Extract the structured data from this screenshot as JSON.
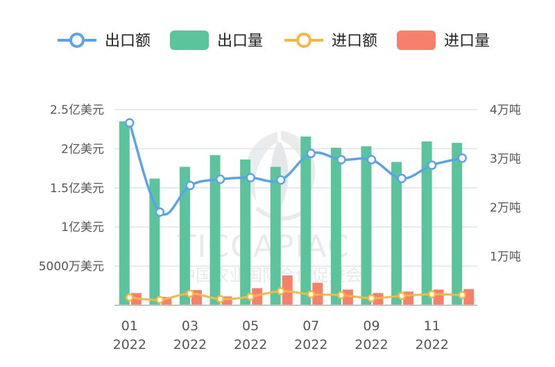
{
  "chart_data": {
    "type": "bar",
    "categories": [
      "01",
      "02",
      "03",
      "04",
      "05",
      "06",
      "07",
      "08",
      "09",
      "10",
      "11",
      "12"
    ],
    "x_tick_labels": [
      {
        "month": "01",
        "year": "2022"
      },
      {
        "month": "03",
        "year": "2022"
      },
      {
        "month": "05",
        "year": "2022"
      },
      {
        "month": "07",
        "year": "2022"
      },
      {
        "month": "09",
        "year": "2022"
      },
      {
        "month": "11",
        "year": "2022"
      }
    ],
    "left_axis": {
      "range": [
        0,
        2.5
      ],
      "tick_values": [
        0.5,
        1,
        1.5,
        2,
        2.5
      ],
      "tick_labels": [
        "5000万美元",
        "1亿美元",
        "1.5亿美元",
        "2亿美元",
        "2.5亿美元"
      ]
    },
    "right_axis": {
      "range": [
        0,
        4
      ],
      "tick_values": [
        1,
        2,
        3,
        4
      ],
      "tick_labels": [
        "1万吨",
        "2万吨",
        "3万吨",
        "4万吨"
      ]
    },
    "grid": true,
    "legend_placement": "top",
    "series": [
      {
        "name": "出口额",
        "kind": "line",
        "axis": "left",
        "color": "#5aa3e8",
        "values": [
          2.33,
          1.19,
          1.53,
          1.61,
          1.63,
          1.6,
          1.94,
          1.86,
          1.86,
          1.62,
          1.79,
          1.88
        ]
      },
      {
        "name": "出口量",
        "kind": "bar",
        "axis": "right",
        "color": "#5cc49c",
        "values": [
          3.76,
          2.59,
          2.83,
          3.07,
          2.98,
          2.83,
          3.45,
          3.22,
          3.25,
          2.93,
          3.35,
          3.32
        ]
      },
      {
        "name": "进口额",
        "kind": "line",
        "axis": "left",
        "color": "#f5b942",
        "values": [
          0.1,
          0.07,
          0.15,
          0.08,
          0.11,
          0.18,
          0.14,
          0.13,
          0.09,
          0.12,
          0.14,
          0.13
        ]
      },
      {
        "name": "进口量",
        "kind": "bar",
        "axis": "right",
        "color": "#f7806a",
        "values": [
          0.25,
          0.17,
          0.31,
          0.18,
          0.35,
          0.61,
          0.46,
          0.32,
          0.25,
          0.28,
          0.32,
          0.33
        ]
      }
    ]
  },
  "watermark": {
    "brand": "TICCAPIAC",
    "org": "中国农业国际合作促进会"
  },
  "colors": {
    "grid": "#dde4ee",
    "axis": "#c4c4c4",
    "tick_text": "#555555",
    "watermark": "#cfd6d6"
  }
}
